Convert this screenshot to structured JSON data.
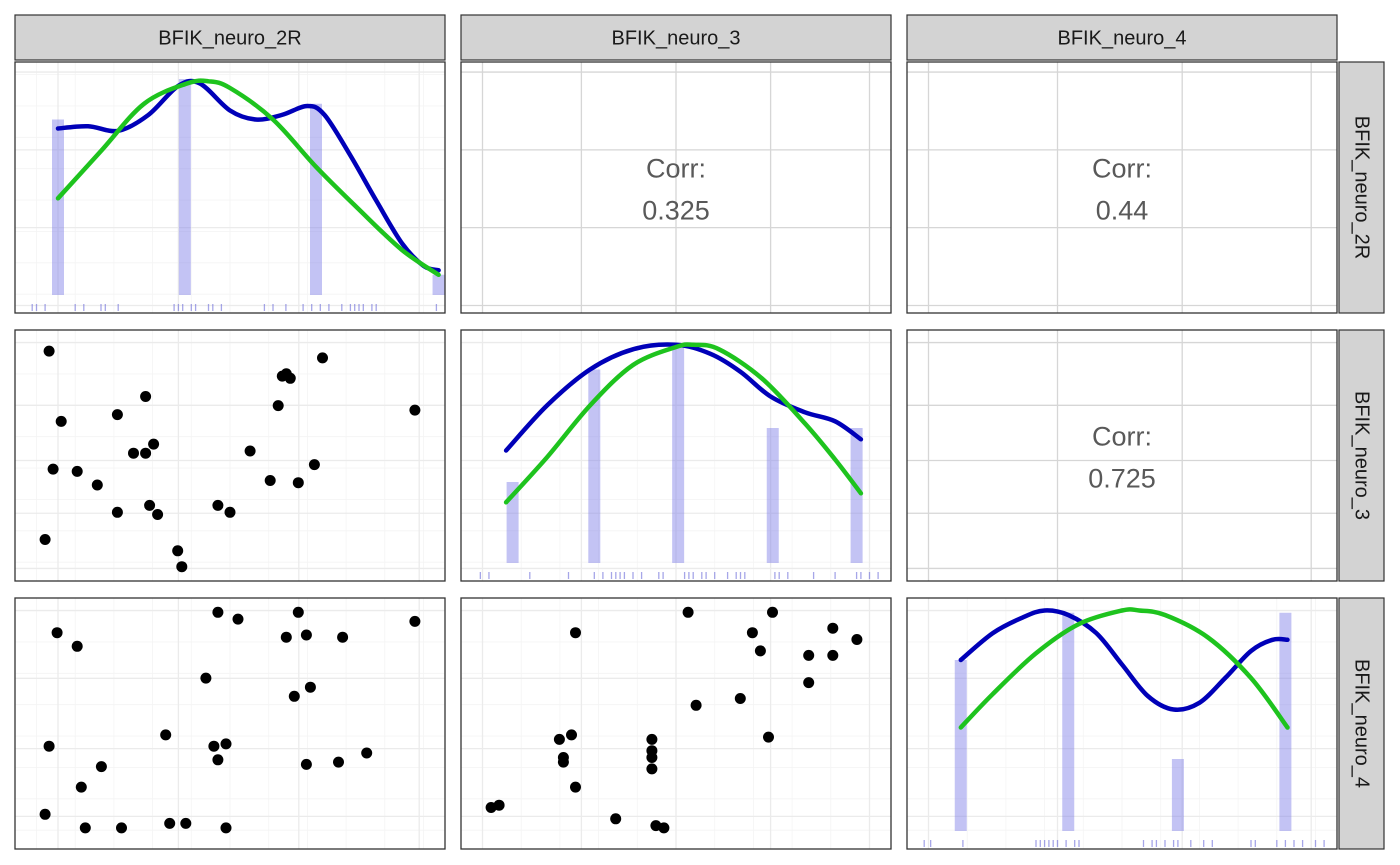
{
  "chart_data": {
    "type": "scatter",
    "variables": [
      "BFIK_neuro_2R",
      "BFIK_neuro_3",
      "BFIK_neuro_4"
    ],
    "colors": {
      "strip_fill": "#d3d3d3",
      "density_line": "#0000b8",
      "normal_line": "#1ec31e",
      "histogram_bar": "#7a7ae6",
      "rug": "#6a6ad8",
      "points": "#000000",
      "grid": "#ebebeb",
      "corr_text": "#595959",
      "panel_border": "#333333"
    },
    "correlations": [
      {
        "row": 0,
        "col": 1,
        "label": "Corr:",
        "value": "0.325"
      },
      {
        "row": 0,
        "col": 2,
        "label": "Corr:",
        "value": "0.44"
      },
      {
        "row": 1,
        "col": 2,
        "label": "Corr:",
        "value": "0.725"
      }
    ],
    "diagonal": [
      {
        "variable": "BFIK_neuro_2R",
        "x_range": [
          0,
          1
        ],
        "histogram": [
          {
            "x": 0.1,
            "h": 0.78
          },
          {
            "x": 0.395,
            "h": 0.96
          },
          {
            "x": 0.7,
            "h": 0.85
          },
          {
            "x": 0.985,
            "h": 0.09
          }
        ],
        "density": [
          [
            0.1,
            0.74
          ],
          [
            0.17,
            0.75
          ],
          [
            0.24,
            0.73
          ],
          [
            0.31,
            0.8
          ],
          [
            0.38,
            0.93
          ],
          [
            0.43,
            0.94
          ],
          [
            0.5,
            0.82
          ],
          [
            0.56,
            0.78
          ],
          [
            0.62,
            0.8
          ],
          [
            0.68,
            0.84
          ],
          [
            0.72,
            0.8
          ],
          [
            0.78,
            0.62
          ],
          [
            0.84,
            0.42
          ],
          [
            0.9,
            0.23
          ],
          [
            0.95,
            0.13
          ],
          [
            0.985,
            0.11
          ]
        ],
        "normal": [
          [
            0.1,
            0.43
          ],
          [
            0.2,
            0.64
          ],
          [
            0.3,
            0.85
          ],
          [
            0.4,
            0.94
          ],
          [
            0.45,
            0.95
          ],
          [
            0.5,
            0.92
          ],
          [
            0.6,
            0.78
          ],
          [
            0.7,
            0.57
          ],
          [
            0.8,
            0.38
          ],
          [
            0.9,
            0.2
          ],
          [
            0.985,
            0.09
          ]
        ],
        "rug": [
          0.04,
          0.05,
          0.07,
          0.14,
          0.16,
          0.2,
          0.21,
          0.24,
          0.37,
          0.38,
          0.39,
          0.41,
          0.42,
          0.45,
          0.46,
          0.48,
          0.58,
          0.6,
          0.63,
          0.67,
          0.69,
          0.71,
          0.73,
          0.76,
          0.78,
          0.79,
          0.8,
          0.81,
          0.83,
          0.84,
          0.98
        ]
      },
      {
        "variable": "BFIK_neuro_3",
        "x_range": [
          0,
          1
        ],
        "histogram": [
          {
            "x": 0.12,
            "h": 0.36
          },
          {
            "x": 0.31,
            "h": 0.86
          },
          {
            "x": 0.505,
            "h": 0.96
          },
          {
            "x": 0.725,
            "h": 0.6
          },
          {
            "x": 0.92,
            "h": 0.6
          }
        ],
        "density": [
          [
            0.105,
            0.5
          ],
          [
            0.2,
            0.7
          ],
          [
            0.3,
            0.86
          ],
          [
            0.4,
            0.95
          ],
          [
            0.5,
            0.97
          ],
          [
            0.58,
            0.93
          ],
          [
            0.65,
            0.85
          ],
          [
            0.72,
            0.74
          ],
          [
            0.8,
            0.67
          ],
          [
            0.87,
            0.63
          ],
          [
            0.93,
            0.55
          ]
        ],
        "normal": [
          [
            0.105,
            0.27
          ],
          [
            0.2,
            0.47
          ],
          [
            0.3,
            0.7
          ],
          [
            0.4,
            0.88
          ],
          [
            0.5,
            0.96
          ],
          [
            0.54,
            0.97
          ],
          [
            0.6,
            0.95
          ],
          [
            0.7,
            0.82
          ],
          [
            0.8,
            0.62
          ],
          [
            0.87,
            0.46
          ],
          [
            0.93,
            0.31
          ]
        ],
        "rug": [
          0.045,
          0.065,
          0.16,
          0.25,
          0.31,
          0.33,
          0.35,
          0.36,
          0.37,
          0.38,
          0.4,
          0.42,
          0.46,
          0.47,
          0.52,
          0.53,
          0.54,
          0.56,
          0.57,
          0.59,
          0.62,
          0.64,
          0.65,
          0.66,
          0.73,
          0.74,
          0.76,
          0.82,
          0.87,
          0.92,
          0.93,
          0.95,
          0.97
        ]
      },
      {
        "variable": "BFIK_neuro_4",
        "x_range": [
          0,
          1
        ],
        "histogram": [
          {
            "x": 0.125,
            "h": 0.76
          },
          {
            "x": 0.375,
            "h": 0.97
          },
          {
            "x": 0.63,
            "h": 0.32
          },
          {
            "x": 0.88,
            "h": 0.97
          }
        ],
        "density": [
          [
            0.125,
            0.76
          ],
          [
            0.2,
            0.88
          ],
          [
            0.27,
            0.95
          ],
          [
            0.32,
            0.98
          ],
          [
            0.375,
            0.96
          ],
          [
            0.44,
            0.88
          ],
          [
            0.5,
            0.74
          ],
          [
            0.56,
            0.6
          ],
          [
            0.62,
            0.54
          ],
          [
            0.68,
            0.57
          ],
          [
            0.74,
            0.68
          ],
          [
            0.8,
            0.8
          ],
          [
            0.85,
            0.85
          ],
          [
            0.885,
            0.85
          ]
        ],
        "normal": [
          [
            0.125,
            0.46
          ],
          [
            0.2,
            0.61
          ],
          [
            0.3,
            0.79
          ],
          [
            0.4,
            0.92
          ],
          [
            0.5,
            0.98
          ],
          [
            0.54,
            0.98
          ],
          [
            0.6,
            0.96
          ],
          [
            0.7,
            0.86
          ],
          [
            0.8,
            0.68
          ],
          [
            0.885,
            0.46
          ]
        ],
        "rug": [
          0.04,
          0.055,
          0.13,
          0.3,
          0.31,
          0.32,
          0.33,
          0.34,
          0.35,
          0.37,
          0.39,
          0.4,
          0.55,
          0.57,
          0.58,
          0.6,
          0.62,
          0.63,
          0.66,
          0.69,
          0.71,
          0.8,
          0.81,
          0.86,
          0.88,
          0.9,
          0.92,
          0.95,
          0.97
        ]
      }
    ],
    "scatter": [
      {
        "row": 1,
        "col": 0,
        "x_var": "BFIK_neuro_2R",
        "y_var": "BFIK_neuro_3",
        "points": [
          [
            0.05,
            0.96
          ],
          [
            0.08,
            0.65
          ],
          [
            0.06,
            0.44
          ],
          [
            0.12,
            0.43
          ],
          [
            0.17,
            0.37
          ],
          [
            0.22,
            0.25
          ],
          [
            0.22,
            0.68
          ],
          [
            0.04,
            0.13
          ],
          [
            0.29,
            0.76
          ],
          [
            0.29,
            0.51
          ],
          [
            0.26,
            0.51
          ],
          [
            0.31,
            0.55
          ],
          [
            0.3,
            0.28
          ],
          [
            0.32,
            0.24
          ],
          [
            0.37,
            0.08
          ],
          [
            0.38,
            0.01
          ],
          [
            0.47,
            0.28
          ],
          [
            0.5,
            0.25
          ],
          [
            0.55,
            0.52
          ],
          [
            0.6,
            0.39
          ],
          [
            0.62,
            0.72
          ],
          [
            0.63,
            0.85
          ],
          [
            0.64,
            0.86
          ],
          [
            0.65,
            0.84
          ],
          [
            0.67,
            0.38
          ],
          [
            0.71,
            0.46
          ],
          [
            0.73,
            0.93
          ],
          [
            0.96,
            0.7
          ]
        ]
      },
      {
        "row": 2,
        "col": 0,
        "x_var": "BFIK_neuro_2R",
        "y_var": "BFIK_neuro_4",
        "points": [
          [
            0.07,
            0.9
          ],
          [
            0.12,
            0.84
          ],
          [
            0.05,
            0.4
          ],
          [
            0.04,
            0.1
          ],
          [
            0.13,
            0.22
          ],
          [
            0.18,
            0.31
          ],
          [
            0.14,
            0.04
          ],
          [
            0.23,
            0.04
          ],
          [
            0.34,
            0.45
          ],
          [
            0.35,
            0.06
          ],
          [
            0.39,
            0.06
          ],
          [
            0.44,
            0.7
          ],
          [
            0.46,
            0.4
          ],
          [
            0.47,
            0.34
          ],
          [
            0.49,
            0.41
          ],
          [
            0.49,
            0.04
          ],
          [
            0.47,
            0.99
          ],
          [
            0.52,
            0.96
          ],
          [
            0.64,
            0.88
          ],
          [
            0.67,
            0.99
          ],
          [
            0.69,
            0.89
          ],
          [
            0.66,
            0.62
          ],
          [
            0.7,
            0.66
          ],
          [
            0.69,
            0.32
          ],
          [
            0.77,
            0.33
          ],
          [
            0.78,
            0.88
          ],
          [
            0.84,
            0.37
          ],
          [
            0.96,
            0.95
          ]
        ]
      },
      {
        "row": 2,
        "col": 1,
        "x_var": "BFIK_neuro_3",
        "y_var": "BFIK_neuro_4",
        "points": [
          [
            0.04,
            0.13
          ],
          [
            0.06,
            0.14
          ],
          [
            0.21,
            0.43
          ],
          [
            0.24,
            0.45
          ],
          [
            0.22,
            0.35
          ],
          [
            0.22,
            0.33
          ],
          [
            0.25,
            0.22
          ],
          [
            0.25,
            0.9
          ],
          [
            0.35,
            0.08
          ],
          [
            0.44,
            0.43
          ],
          [
            0.44,
            0.38
          ],
          [
            0.44,
            0.35
          ],
          [
            0.44,
            0.3
          ],
          [
            0.45,
            0.05
          ],
          [
            0.47,
            0.04
          ],
          [
            0.53,
            0.99
          ],
          [
            0.55,
            0.58
          ],
          [
            0.66,
            0.61
          ],
          [
            0.69,
            0.9
          ],
          [
            0.71,
            0.82
          ],
          [
            0.73,
            0.44
          ],
          [
            0.74,
            0.99
          ],
          [
            0.83,
            0.8
          ],
          [
            0.83,
            0.68
          ],
          [
            0.89,
            0.92
          ],
          [
            0.89,
            0.8
          ],
          [
            0.95,
            0.87
          ]
        ]
      }
    ]
  }
}
